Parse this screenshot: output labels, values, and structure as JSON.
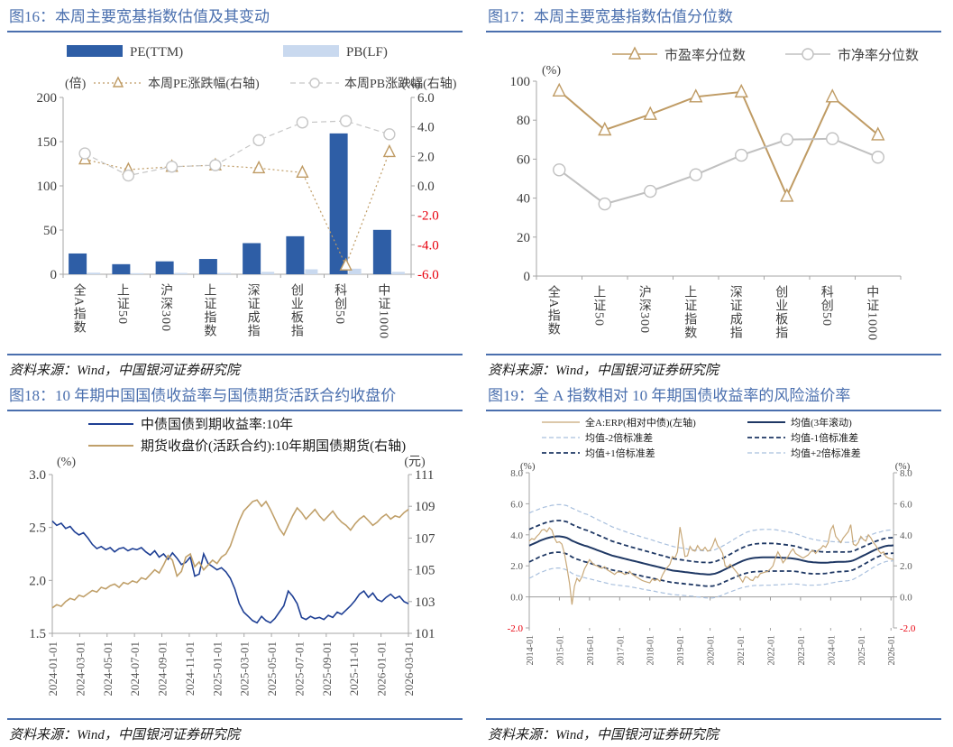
{
  "panels": [
    {
      "source": "资料来源：Wind，中国银河证券研究院"
    },
    {
      "source": "资料来源：Wind，中国银河证券研究院"
    },
    {
      "source": "资料来源：Wind，中国银河证券研究院"
    },
    {
      "source": "资料来源：Wind，中国银河证券研究院"
    }
  ],
  "style": {
    "title_color": "#4a6fae",
    "axis_text_color": "#404040",
    "axis_line_color": "#a6a6a6",
    "negative_tick_color": "#e8000d"
  },
  "chart_data": [
    {
      "type": "bar",
      "title": "图16：本周主要宽基指数估值及其变动",
      "categories": [
        "全A指数",
        "上证50",
        "沪深300",
        "上证指数",
        "深证成指",
        "创业板指",
        "科创50",
        "中证1000"
      ],
      "left_axis": {
        "unit": "(倍)",
        "min": 0,
        "max": 200,
        "ticks": [
          0,
          50,
          100,
          150,
          200
        ]
      },
      "right_axis": {
        "unit": "(%)",
        "min": -6,
        "max": 6,
        "ticks": [
          6,
          4,
          2,
          0,
          -2,
          -4,
          -6
        ]
      },
      "legend_position": "top",
      "grid": false,
      "series": [
        {
          "name": "PE(TTM)",
          "kind": "bar",
          "axis": "left",
          "color": "#2e5ea6",
          "values": [
            23.5,
            11.4,
            14.6,
            17.3,
            35.2,
            43.0,
            159.3,
            50.2
          ]
        },
        {
          "name": "PB(LF)",
          "kind": "bar",
          "axis": "left",
          "color": "#c9d9ef",
          "values": [
            1.8,
            1.2,
            1.5,
            1.5,
            2.7,
            5.6,
            6.3,
            2.7
          ]
        },
        {
          "name": "本周PE涨跌幅(右轴)",
          "kind": "line",
          "axis": "right",
          "style": "dotted",
          "marker": "triangle",
          "color": "#bf9b64",
          "values": [
            1.8,
            1.1,
            1.3,
            1.4,
            1.2,
            0.9,
            -5.4,
            2.3
          ]
        },
        {
          "name": "本周PB涨跌幅(右轴)",
          "kind": "line",
          "axis": "right",
          "style": "dashed",
          "marker": "circle",
          "color": "#c6c6c6",
          "values": [
            2.2,
            0.7,
            1.3,
            1.4,
            3.1,
            4.3,
            4.4,
            3.5
          ]
        }
      ]
    },
    {
      "type": "line",
      "title": "图17：本周主要宽基指数估值分位数",
      "categories": [
        "全A指数",
        "上证50",
        "沪深300",
        "上证指数",
        "深证成指",
        "创业板指",
        "科创50",
        "中证1000"
      ],
      "y_axis": {
        "unit": "(%)",
        "min": 0,
        "max": 100,
        "ticks": [
          0,
          20,
          40,
          60,
          80,
          100
        ]
      },
      "legend_position": "top",
      "grid": false,
      "series": [
        {
          "name": "市盈率分位数",
          "marker": "triangle",
          "color": "#bf9b64",
          "values": [
            95,
            75,
            83,
            92,
            94.5,
            41,
            92,
            72.5
          ]
        },
        {
          "name": "市净率分位数",
          "marker": "circle",
          "color": "#c0c0c0",
          "values": [
            54.5,
            37,
            43.5,
            52,
            62,
            70,
            70.5,
            61
          ]
        }
      ]
    },
    {
      "type": "line",
      "title": "图18：10 年期中国国债收益率与国债期货活跃合约收盘价",
      "x_ticks": [
        "2024-01-01",
        "2024-03-01",
        "2024-05-01",
        "2024-07-01",
        "2024-09-01",
        "2024-11-01",
        "2025-01-01",
        "2025-03-01",
        "2025-05-01",
        "2025-07-01",
        "2025-09-01",
        "2025-11-01",
        "2026-01-01",
        "2026-03-01"
      ],
      "x_span_months": 26,
      "left_axis": {
        "unit": "(%)",
        "min": 1.5,
        "max": 3.0,
        "ticks": [
          3.0,
          2.5,
          2.0,
          1.5
        ]
      },
      "right_axis": {
        "unit": "(元)",
        "min": 101,
        "max": 111,
        "ticks": [
          111,
          109,
          107,
          105,
          103,
          101
        ]
      },
      "legend_position": "top",
      "grid": false,
      "series": [
        {
          "name": "中债国债到期收益率:10年",
          "axis": "left",
          "color": "#1e3f94",
          "values": [
            2.56,
            2.52,
            2.54,
            2.49,
            2.51,
            2.46,
            2.43,
            2.45,
            2.4,
            2.34,
            2.3,
            2.32,
            2.29,
            2.31,
            2.27,
            2.3,
            2.31,
            2.28,
            2.3,
            2.29,
            2.31,
            2.27,
            2.24,
            2.28,
            2.22,
            2.25,
            2.2,
            2.26,
            2.21,
            2.15,
            2.17,
            2.22,
            2.04,
            2.06,
            2.25,
            2.16,
            2.13,
            2.1,
            2.12,
            2.08,
            2.02,
            1.92,
            1.78,
            1.7,
            1.66,
            1.62,
            1.6,
            1.66,
            1.62,
            1.6,
            1.64,
            1.7,
            1.76,
            1.9,
            1.85,
            1.78,
            1.65,
            1.63,
            1.66,
            1.64,
            1.65,
            1.63,
            1.67,
            1.65,
            1.7,
            1.68,
            1.72,
            1.76,
            1.81,
            1.87,
            1.9,
            1.84,
            1.88,
            1.82,
            1.8,
            1.84,
            1.87,
            1.83,
            1.85,
            1.8,
            1.78
          ]
        },
        {
          "name": "期货收盘价(活跃合约):10年期国债期货(右轴)",
          "axis": "right",
          "color": "#c0a06a",
          "values": [
            102.6,
            102.8,
            102.7,
            103.0,
            103.2,
            103.1,
            103.4,
            103.3,
            103.5,
            103.7,
            103.6,
            103.9,
            103.8,
            104.0,
            104.1,
            103.9,
            104.2,
            104.1,
            104.3,
            104.2,
            104.5,
            104.4,
            104.7,
            105.0,
            104.8,
            105.3,
            105.9,
            105.6,
            104.6,
            104.9,
            105.8,
            106.0,
            105.2,
            105.5,
            105.0,
            105.3,
            105.6,
            105.4,
            105.8,
            106.0,
            106.5,
            107.3,
            108.1,
            108.7,
            109.0,
            109.3,
            109.4,
            109.0,
            109.3,
            108.8,
            108.2,
            107.6,
            107.2,
            107.8,
            108.4,
            108.9,
            108.6,
            108.2,
            108.5,
            108.8,
            108.4,
            108.1,
            108.4,
            108.7,
            108.3,
            108.0,
            107.8,
            107.5,
            107.9,
            108.2,
            108.4,
            108.1,
            107.8,
            108.0,
            108.3,
            108.5,
            108.2,
            108.4,
            108.3,
            108.6,
            108.8
          ]
        }
      ]
    },
    {
      "type": "line",
      "title": "图19：全 A 指数相对 10 年期国债收益率的风险溢价率",
      "x_ticks": [
        "2014-01",
        "2015-01",
        "2016-01",
        "2017-01",
        "2018-01",
        "2019-01",
        "2020-01",
        "2021-01",
        "2022-01",
        "2023-01",
        "2024-01",
        "2025-01",
        "2026-01"
      ],
      "x_span_months": 145,
      "left_axis": {
        "unit": "(%)",
        "min": -2,
        "max": 8,
        "ticks": [
          8,
          6,
          4,
          2,
          0,
          -2
        ]
      },
      "right_axis": {
        "unit": "(%)",
        "min": -2,
        "max": 8,
        "ticks": [
          8,
          6,
          4,
          2,
          0,
          -2
        ]
      },
      "legend_position": "top",
      "grid": false,
      "zero_line": true,
      "series": [
        {
          "name": "全A:ERP(相对中债)(左轴)",
          "color": "#c8a878",
          "style": "solid",
          "width": 1.2,
          "values": [
            3.6,
            3.75,
            3.7,
            3.9,
            4.05,
            4.3,
            4.35,
            4.2,
            4.45,
            4.3,
            3.8,
            3.5,
            3.55,
            3.4,
            2.8,
            1.9,
            0.9,
            -0.5,
            0.7,
            1.2,
            1.0,
            1.3,
            1.8,
            2.1,
            2.4,
            2.2,
            2.05,
            2.0,
            1.9,
            1.85,
            1.95,
            1.75,
            1.65,
            1.55,
            1.45,
            1.6,
            1.6,
            1.55,
            1.45,
            1.5,
            1.65,
            1.45,
            1.35,
            1.25,
            1.15,
            1.05,
            1.0,
            0.95,
            0.9,
            1.15,
            1.05,
            1.15,
            1.0,
            1.4,
            1.7,
            1.9,
            2.1,
            2.6,
            2.5,
            2.9,
            4.5,
            3.6,
            2.6,
            2.65,
            3.25,
            3.0,
            2.95,
            3.3,
            3.05,
            3.0,
            3.2,
            2.95,
            3.0,
            3.3,
            3.75,
            3.3,
            3.1,
            2.8,
            2.0,
            1.9,
            2.1,
            1.9,
            1.7,
            1.5,
            1.2,
            0.95,
            1.3,
            1.25,
            1.1,
            1.05,
            1.3,
            1.25,
            1.5,
            1.55,
            1.6,
            1.65,
            1.8,
            2.0,
            2.5,
            2.9,
            2.6,
            2.2,
            2.4,
            2.6,
            2.9,
            3.1,
            2.8,
            2.7,
            2.6,
            2.5,
            2.6,
            2.7,
            2.9,
            3.0,
            2.8,
            3.0,
            3.1,
            3.3,
            3.2,
            3.5,
            4.3,
            4.6,
            3.9,
            3.7,
            3.5,
            3.8,
            4.0,
            4.2,
            4.65,
            3.4,
            3.3,
            3.5,
            3.9,
            3.7,
            3.6,
            4.0,
            3.8,
            3.5,
            3.3,
            3.0,
            2.8,
            2.9,
            2.6,
            2.5,
            2.45,
            2.4
          ]
        },
        {
          "name": "均值(3年滚动)",
          "color": "#1f3864",
          "style": "solid",
          "width": 2,
          "values": [
            3.3,
            3.38,
            3.45,
            3.52,
            3.6,
            3.66,
            3.72,
            3.78,
            3.82,
            3.86,
            3.88,
            3.9,
            3.9,
            3.88,
            3.85,
            3.8,
            3.72,
            3.62,
            3.55,
            3.48,
            3.42,
            3.36,
            3.3,
            3.26,
            3.2,
            3.14,
            3.08,
            3.02,
            2.96,
            2.9,
            2.84,
            2.78,
            2.72,
            2.66,
            2.62,
            2.58,
            2.54,
            2.5,
            2.46,
            2.42,
            2.38,
            2.34,
            2.3,
            2.26,
            2.22,
            2.18,
            2.14,
            2.1,
            2.06,
            2.02,
            1.98,
            1.94,
            1.9,
            1.86,
            1.82,
            1.78,
            1.74,
            1.7,
            1.68,
            1.66,
            1.64,
            1.62,
            1.6,
            1.58,
            1.56,
            1.54,
            1.52,
            1.5,
            1.48,
            1.47,
            1.46,
            1.45,
            1.45,
            1.47,
            1.5,
            1.56,
            1.62,
            1.7,
            1.78,
            1.86,
            1.94,
            2.02,
            2.1,
            2.18,
            2.25,
            2.32,
            2.38,
            2.43,
            2.47,
            2.5,
            2.52,
            2.53,
            2.54,
            2.55,
            2.55,
            2.55,
            2.55,
            2.55,
            2.55,
            2.54,
            2.53,
            2.52,
            2.51,
            2.5,
            2.49,
            2.47,
            2.45,
            2.42,
            2.38,
            2.34,
            2.3,
            2.27,
            2.25,
            2.23,
            2.22,
            2.21,
            2.2,
            2.2,
            2.2,
            2.21,
            2.23,
            2.24,
            2.25,
            2.26,
            2.26,
            2.26,
            2.27,
            2.28,
            2.3,
            2.35,
            2.42,
            2.5,
            2.58,
            2.66,
            2.74,
            2.82,
            2.9,
            2.98,
            3.06,
            3.12,
            3.18,
            3.24,
            3.28,
            3.3,
            3.31,
            3.32
          ]
        },
        {
          "name": "均值-2倍标准差",
          "color": "#a9c0de",
          "style": "dashed",
          "width": 1.2,
          "band": -2
        },
        {
          "name": "均值-1倍标准差",
          "color": "#1f3864",
          "style": "dashed",
          "width": 1.8,
          "band": -1
        },
        {
          "name": "均值+1倍标准差",
          "color": "#1f3864",
          "style": "dashed",
          "width": 1.8,
          "band": 1
        },
        {
          "name": "均值+2倍标准差",
          "color": "#a9c0de",
          "style": "dashed",
          "width": 1.2,
          "band": 2
        }
      ],
      "std": [
        1.05,
        1.05,
        1.04,
        1.04,
        1.03,
        1.03,
        1.03,
        1.02,
        1.02,
        1.02,
        1.02,
        1.02,
        1.02,
        1.03,
        1.03,
        1.04,
        1.04,
        1.05,
        1.05,
        1.05,
        1.04,
        1.04,
        1.03,
        1.03,
        1.02,
        1.01,
        1.0,
        0.99,
        0.98,
        0.97,
        0.96,
        0.95,
        0.94,
        0.93,
        0.92,
        0.91,
        0.9,
        0.89,
        0.88,
        0.87,
        0.86,
        0.86,
        0.85,
        0.85,
        0.84,
        0.84,
        0.83,
        0.83,
        0.82,
        0.82,
        0.81,
        0.81,
        0.8,
        0.8,
        0.79,
        0.79,
        0.78,
        0.78,
        0.77,
        0.77,
        0.76,
        0.76,
        0.76,
        0.75,
        0.75,
        0.75,
        0.75,
        0.75,
        0.75,
        0.75,
        0.76,
        0.76,
        0.76,
        0.77,
        0.77,
        0.78,
        0.78,
        0.79,
        0.79,
        0.8,
        0.81,
        0.82,
        0.83,
        0.84,
        0.85,
        0.86,
        0.87,
        0.88,
        0.88,
        0.89,
        0.89,
        0.9,
        0.9,
        0.9,
        0.9,
        0.9,
        0.9,
        0.89,
        0.89,
        0.88,
        0.87,
        0.86,
        0.85,
        0.84,
        0.83,
        0.82,
        0.81,
        0.8,
        0.79,
        0.78,
        0.77,
        0.76,
        0.75,
        0.74,
        0.73,
        0.72,
        0.71,
        0.7,
        0.69,
        0.68,
        0.67,
        0.66,
        0.65,
        0.64,
        0.63,
        0.63,
        0.62,
        0.62,
        0.61,
        0.61,
        0.6,
        0.6,
        0.59,
        0.58,
        0.57,
        0.56,
        0.55,
        0.54,
        0.53,
        0.52,
        0.51,
        0.51,
        0.5,
        0.5,
        0.5,
        0.5
      ]
    }
  ]
}
